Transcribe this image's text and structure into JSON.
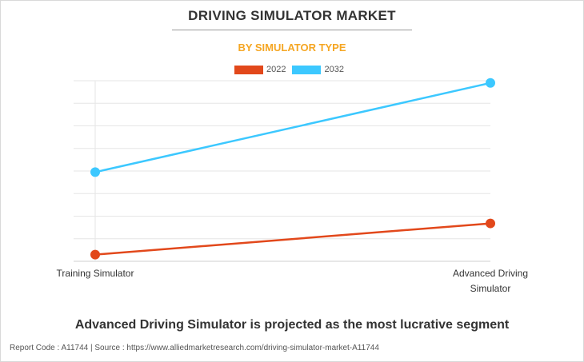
{
  "header": {
    "title": "DRIVING SIMULATOR MARKET",
    "subtitle": "BY SIMULATOR TYPE"
  },
  "chart_data": {
    "type": "line",
    "categories": [
      "Training Simulator",
      "Advanced Driving Simulator"
    ],
    "category_lines": [
      [
        "Training Simulator"
      ],
      [
        "Advanced Driving",
        "Simulator"
      ]
    ],
    "series": [
      {
        "name": "2022",
        "color": "#e2481b",
        "values": [
          0.3,
          1.7
        ]
      },
      {
        "name": "2032",
        "color": "#3cc8ff",
        "values": [
          4.0,
          8.0
        ]
      }
    ],
    "ylim": [
      0,
      8.1
    ],
    "grid": true,
    "title": "DRIVING SIMULATOR MARKET",
    "subtitle": "BY SIMULATOR TYPE",
    "xlabel": "",
    "ylabel": "",
    "legend": "top-center"
  },
  "headline": "Advanced Driving Simulator is projected as the most lucrative segment",
  "footer": "Report Code : A11744  |  Source : https://www.alliedmarketresearch.com/driving-simulator-market-A11744"
}
